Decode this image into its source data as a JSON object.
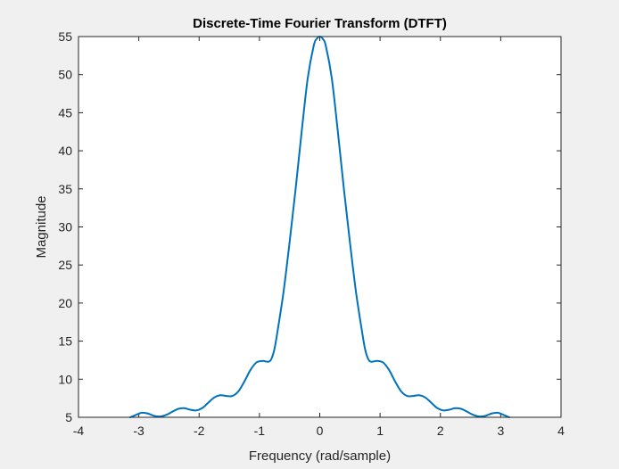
{
  "chart_data": {
    "type": "line",
    "title": "Discrete-Time Fourier Transform (DTFT)",
    "xlabel": "Frequency (rad/sample)",
    "ylabel": "Magnitude",
    "xlim": [
      -4,
      4
    ],
    "ylim": [
      5,
      55
    ],
    "xticks": [
      -4,
      -3,
      -2,
      -1,
      0,
      1,
      2,
      3,
      4
    ],
    "yticks": [
      5,
      10,
      15,
      20,
      25,
      30,
      35,
      40,
      45,
      50,
      55
    ],
    "grid": false,
    "series": [
      {
        "color": "#0072bd",
        "x": [
          -3.1416,
          -3.05,
          -2.95,
          -2.85,
          -2.75,
          -2.65,
          -2.55,
          -2.45,
          -2.35,
          -2.25,
          -2.15,
          -2.05,
          -1.95,
          -1.85,
          -1.75,
          -1.65,
          -1.55,
          -1.45,
          -1.35,
          -1.25,
          -1.15,
          -1.05,
          -0.95,
          -0.85,
          -0.8,
          -0.75,
          -0.7,
          -0.6,
          -0.5,
          -0.4,
          -0.3,
          -0.2,
          -0.1,
          -0.05,
          0,
          0.05,
          0.1,
          0.2,
          0.3,
          0.4,
          0.5,
          0.6,
          0.7,
          0.75,
          0.8,
          0.85,
          0.95,
          1.05,
          1.15,
          1.25,
          1.35,
          1.45,
          1.55,
          1.65,
          1.75,
          1.85,
          1.95,
          2.05,
          2.15,
          2.25,
          2.35,
          2.45,
          2.55,
          2.65,
          2.75,
          2.85,
          2.95,
          3.05,
          3.1416
        ],
        "y": [
          5.0,
          5.3,
          5.6,
          5.5,
          5.2,
          5.1,
          5.3,
          5.7,
          6.1,
          6.2,
          6.0,
          5.9,
          6.2,
          6.9,
          7.6,
          7.9,
          7.8,
          7.8,
          8.4,
          9.7,
          11.2,
          12.2,
          12.4,
          12.3,
          12.7,
          14.0,
          16.3,
          21.5,
          28.0,
          35.0,
          42.5,
          49.5,
          53.8,
          54.7,
          55.0,
          54.7,
          53.8,
          49.5,
          42.5,
          35.0,
          28.0,
          21.5,
          16.3,
          14.0,
          12.7,
          12.3,
          12.4,
          12.2,
          11.2,
          9.7,
          8.4,
          7.8,
          7.8,
          7.9,
          7.6,
          6.9,
          6.2,
          5.9,
          6.0,
          6.2,
          6.1,
          5.7,
          5.3,
          5.1,
          5.2,
          5.5,
          5.6,
          5.3,
          5.0
        ]
      }
    ]
  }
}
